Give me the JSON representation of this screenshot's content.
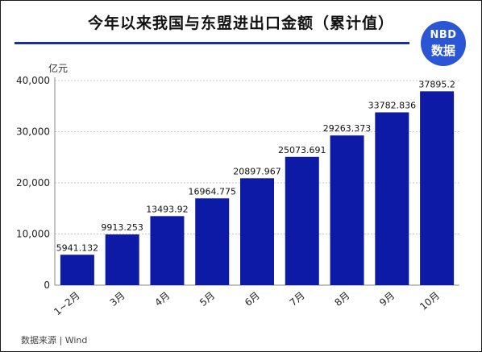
{
  "title": "今年以来我国与东盟进出口金额（累计值）",
  "logo": {
    "line1": "NBD",
    "line2": "数据"
  },
  "unit": "亿元",
  "source": "数据来源 | Wind",
  "colors": {
    "bar": "#0d1aa6",
    "title_rule": "#1a2f99",
    "logo_bg": "#2a56d6"
  },
  "chart_data": {
    "type": "bar",
    "categories": [
      "1~2月",
      "3月",
      "4月",
      "5月",
      "6月",
      "7月",
      "8月",
      "9月",
      "10月"
    ],
    "values": [
      5941.132,
      9913.253,
      13493.92,
      16964.775,
      20897.967,
      25073.691,
      29263.373,
      33782.836,
      37895.2
    ],
    "value_labels": [
      "5941.132",
      "9913.253",
      "13493.92",
      "16964.775",
      "20897.967",
      "25073.691",
      "29263.373",
      "33782.836",
      "37895.2"
    ],
    "ylim": [
      0,
      40000
    ],
    "yticks": [
      0,
      10000,
      20000,
      30000,
      40000
    ],
    "ytick_labels": [
      "0",
      "10,000",
      "20,000",
      "30,000",
      "40,000"
    ],
    "grid": true
  }
}
